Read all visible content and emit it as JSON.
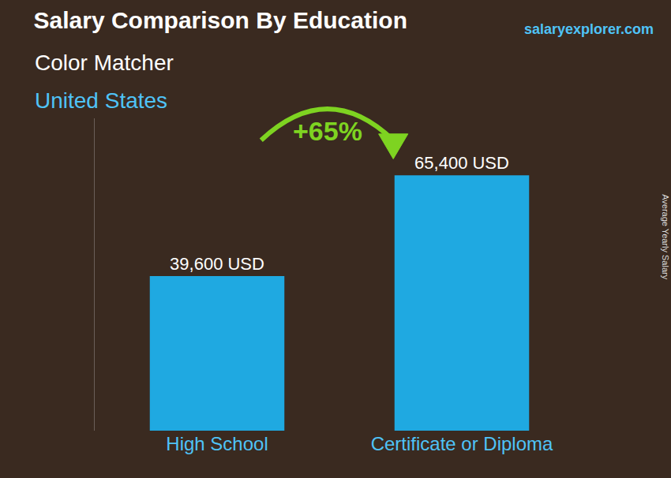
{
  "chart_data": {
    "type": "bar",
    "title": "Salary Comparison By Education",
    "subtitle": "Color Matcher",
    "location": "United States",
    "source": "salaryexplorer.com",
    "categories": [
      "High School",
      "Certificate or Diploma"
    ],
    "values": [
      39600,
      65400
    ],
    "value_labels": [
      "39,600 USD",
      "65,400 USD"
    ],
    "data_labels": true,
    "color": "#1fa9e1",
    "ylabel": "Average Yearly Salary",
    "annotations": [
      "+65%"
    ],
    "ylim": [
      0,
      80000
    ],
    "tick_labels": "x",
    "grid": false
  }
}
